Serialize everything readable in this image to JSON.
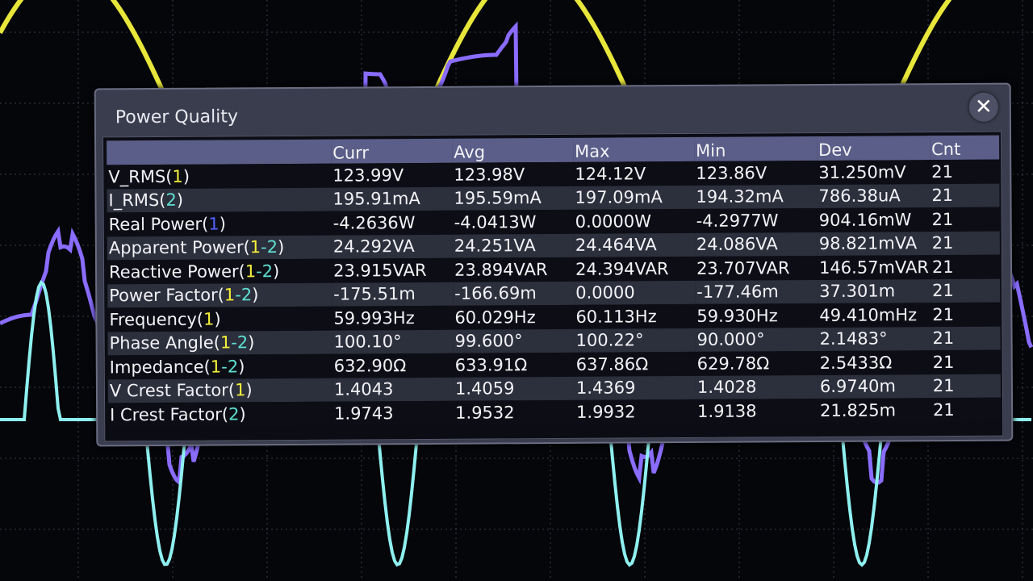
{
  "colors": {
    "ch1": "#f4ef3a",
    "ch2": "#5ee0d2",
    "ch1_real": "#5060ff",
    "trace_ch1": "#e8e63a",
    "trace_ch2": "#8ff0f0",
    "trace_math": "#8a6cff",
    "grid": "#3a3d46"
  },
  "dialog": {
    "title": "Power Quality",
    "close_icon": "close-icon"
  },
  "table": {
    "headers": [
      "",
      "Curr",
      "Avg",
      "Max",
      "Min",
      "Dev",
      "Cnt"
    ],
    "rows": [
      {
        "label": [
          {
            "t": "V_RMS("
          },
          {
            "t": "1",
            "c": "ch1"
          },
          {
            "t": ")"
          }
        ],
        "values": [
          "123.99V",
          "123.98V",
          "124.12V",
          "123.86V",
          "31.250mV",
          "21"
        ]
      },
      {
        "label": [
          {
            "t": "I_RMS("
          },
          {
            "t": "2",
            "c": "ch2"
          },
          {
            "t": ")"
          }
        ],
        "values": [
          "195.91mA",
          "195.59mA",
          "197.09mA",
          "194.32mA",
          "786.38uA",
          "21"
        ]
      },
      {
        "label": [
          {
            "t": "Real Power("
          },
          {
            "t": "1",
            "c": "ch1_real"
          },
          {
            "t": ")"
          }
        ],
        "values": [
          "-4.2636W",
          "-4.0413W",
          "0.0000W",
          "-4.2977W",
          "904.16mW",
          "21"
        ]
      },
      {
        "label": [
          {
            "t": "Apparent Power("
          },
          {
            "t": "1",
            "c": "ch1"
          },
          {
            "t": "-",
            "c": "ch2"
          },
          {
            "t": "2",
            "c": "ch2"
          },
          {
            "t": ")"
          }
        ],
        "values": [
          "24.292VA",
          "24.251VA",
          "24.464VA",
          "24.086VA",
          "98.821mVA",
          "21"
        ]
      },
      {
        "label": [
          {
            "t": "Reactive Power("
          },
          {
            "t": "1",
            "c": "ch1"
          },
          {
            "t": "-",
            "c": "ch2"
          },
          {
            "t": "2",
            "c": "ch2"
          },
          {
            "t": ")"
          }
        ],
        "values": [
          "23.915VAR",
          "23.894VAR",
          "24.394VAR",
          "23.707VAR",
          "146.57mVAR",
          "21"
        ]
      },
      {
        "label": [
          {
            "t": "Power Factor("
          },
          {
            "t": "1",
            "c": "ch1"
          },
          {
            "t": "-",
            "c": "ch2"
          },
          {
            "t": "2",
            "c": "ch2"
          },
          {
            "t": ")"
          }
        ],
        "values": [
          "-175.51m",
          "-166.69m",
          "0.0000",
          "-177.46m",
          "37.301m",
          "21"
        ]
      },
      {
        "label": [
          {
            "t": "Frequency("
          },
          {
            "t": "1",
            "c": "ch1"
          },
          {
            "t": ")"
          }
        ],
        "values": [
          "59.993Hz",
          "60.029Hz",
          "60.113Hz",
          "59.930Hz",
          "49.410mHz",
          "21"
        ]
      },
      {
        "label": [
          {
            "t": "Phase Angle("
          },
          {
            "t": "1",
            "c": "ch1"
          },
          {
            "t": "-",
            "c": "ch2"
          },
          {
            "t": "2",
            "c": "ch2"
          },
          {
            "t": ")"
          }
        ],
        "values": [
          "100.10°",
          "99.600°",
          "100.22°",
          "90.000°",
          "2.1483°",
          "21"
        ]
      },
      {
        "label": [
          {
            "t": "Impedance("
          },
          {
            "t": "1",
            "c": "ch1"
          },
          {
            "t": "-",
            "c": "ch2"
          },
          {
            "t": "2",
            "c": "ch2"
          },
          {
            "t": ")"
          }
        ],
        "values": [
          "632.90Ω",
          "633.91Ω",
          "637.86Ω",
          "629.78Ω",
          "2.5433Ω",
          "21"
        ]
      },
      {
        "label": [
          {
            "t": "V Crest Factor("
          },
          {
            "t": "1",
            "c": "ch1"
          },
          {
            "t": ")"
          }
        ],
        "values": [
          "1.4043",
          "1.4059",
          "1.4369",
          "1.4028",
          "6.9740m",
          "21"
        ]
      },
      {
        "label": [
          {
            "t": "I Crest Factor("
          },
          {
            "t": "2",
            "c": "ch2"
          },
          {
            "t": ")"
          }
        ],
        "values": [
          "1.9743",
          "1.9532",
          "1.9932",
          "1.9138",
          "21.825m",
          "21"
        ]
      }
    ]
  }
}
